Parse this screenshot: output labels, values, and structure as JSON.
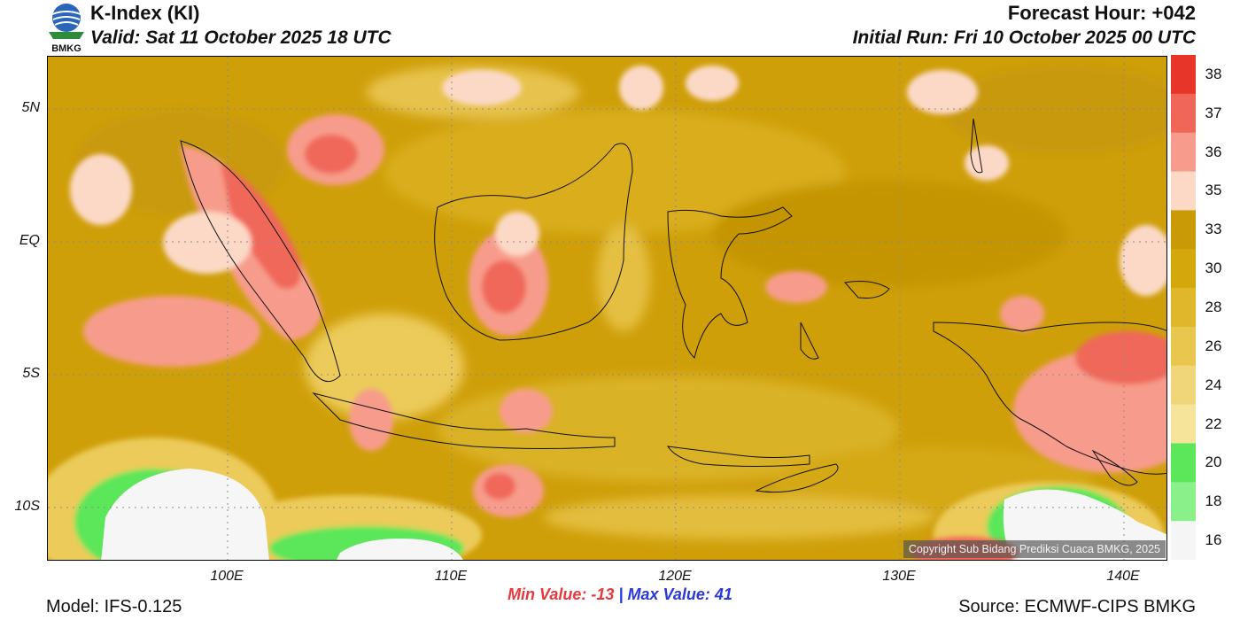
{
  "header": {
    "logo_text": "BMKG",
    "title": "K-Index (KI)",
    "valid": "Valid: Sat 11 October 2025 18 UTC",
    "forecast_hour": "Forecast Hour: +042",
    "initial_run": "Initial Run: Fri 10 October 2025 00 UTC"
  },
  "map": {
    "y_axis_labels": [
      "5N",
      "EQ",
      "5S",
      "10S"
    ],
    "x_axis_labels": [
      "100E",
      "110E",
      "120E",
      "130E",
      "140E"
    ],
    "lon_range": [
      92,
      142
    ],
    "lat_range": [
      -12,
      7
    ],
    "copyright": "Copyright Sub Bidang Prediksi Cuaca BMKG, 2025"
  },
  "colorbar": {
    "labels": [
      "38",
      "37",
      "36",
      "35",
      "33",
      "30",
      "28",
      "26",
      "24",
      "22",
      "20",
      "18",
      "16"
    ],
    "colors": [
      "#e8352a",
      "#f0675a",
      "#f79c8c",
      "#fcd9c7",
      "#c99a06",
      "#d4a70d",
      "#e0b72a",
      "#e9c74f",
      "#f0d678",
      "#f6e49a",
      "#5ce65a",
      "#8af08a",
      "#f5f5f5"
    ]
  },
  "stats": {
    "min_label": "Min Value:",
    "min_value": "-13",
    "separator": "|",
    "max_label": "Max Value:",
    "max_value": "41"
  },
  "footer": {
    "model": "Model: IFS-0.125",
    "source": "Source: ECMWF-CIPS BMKG"
  }
}
